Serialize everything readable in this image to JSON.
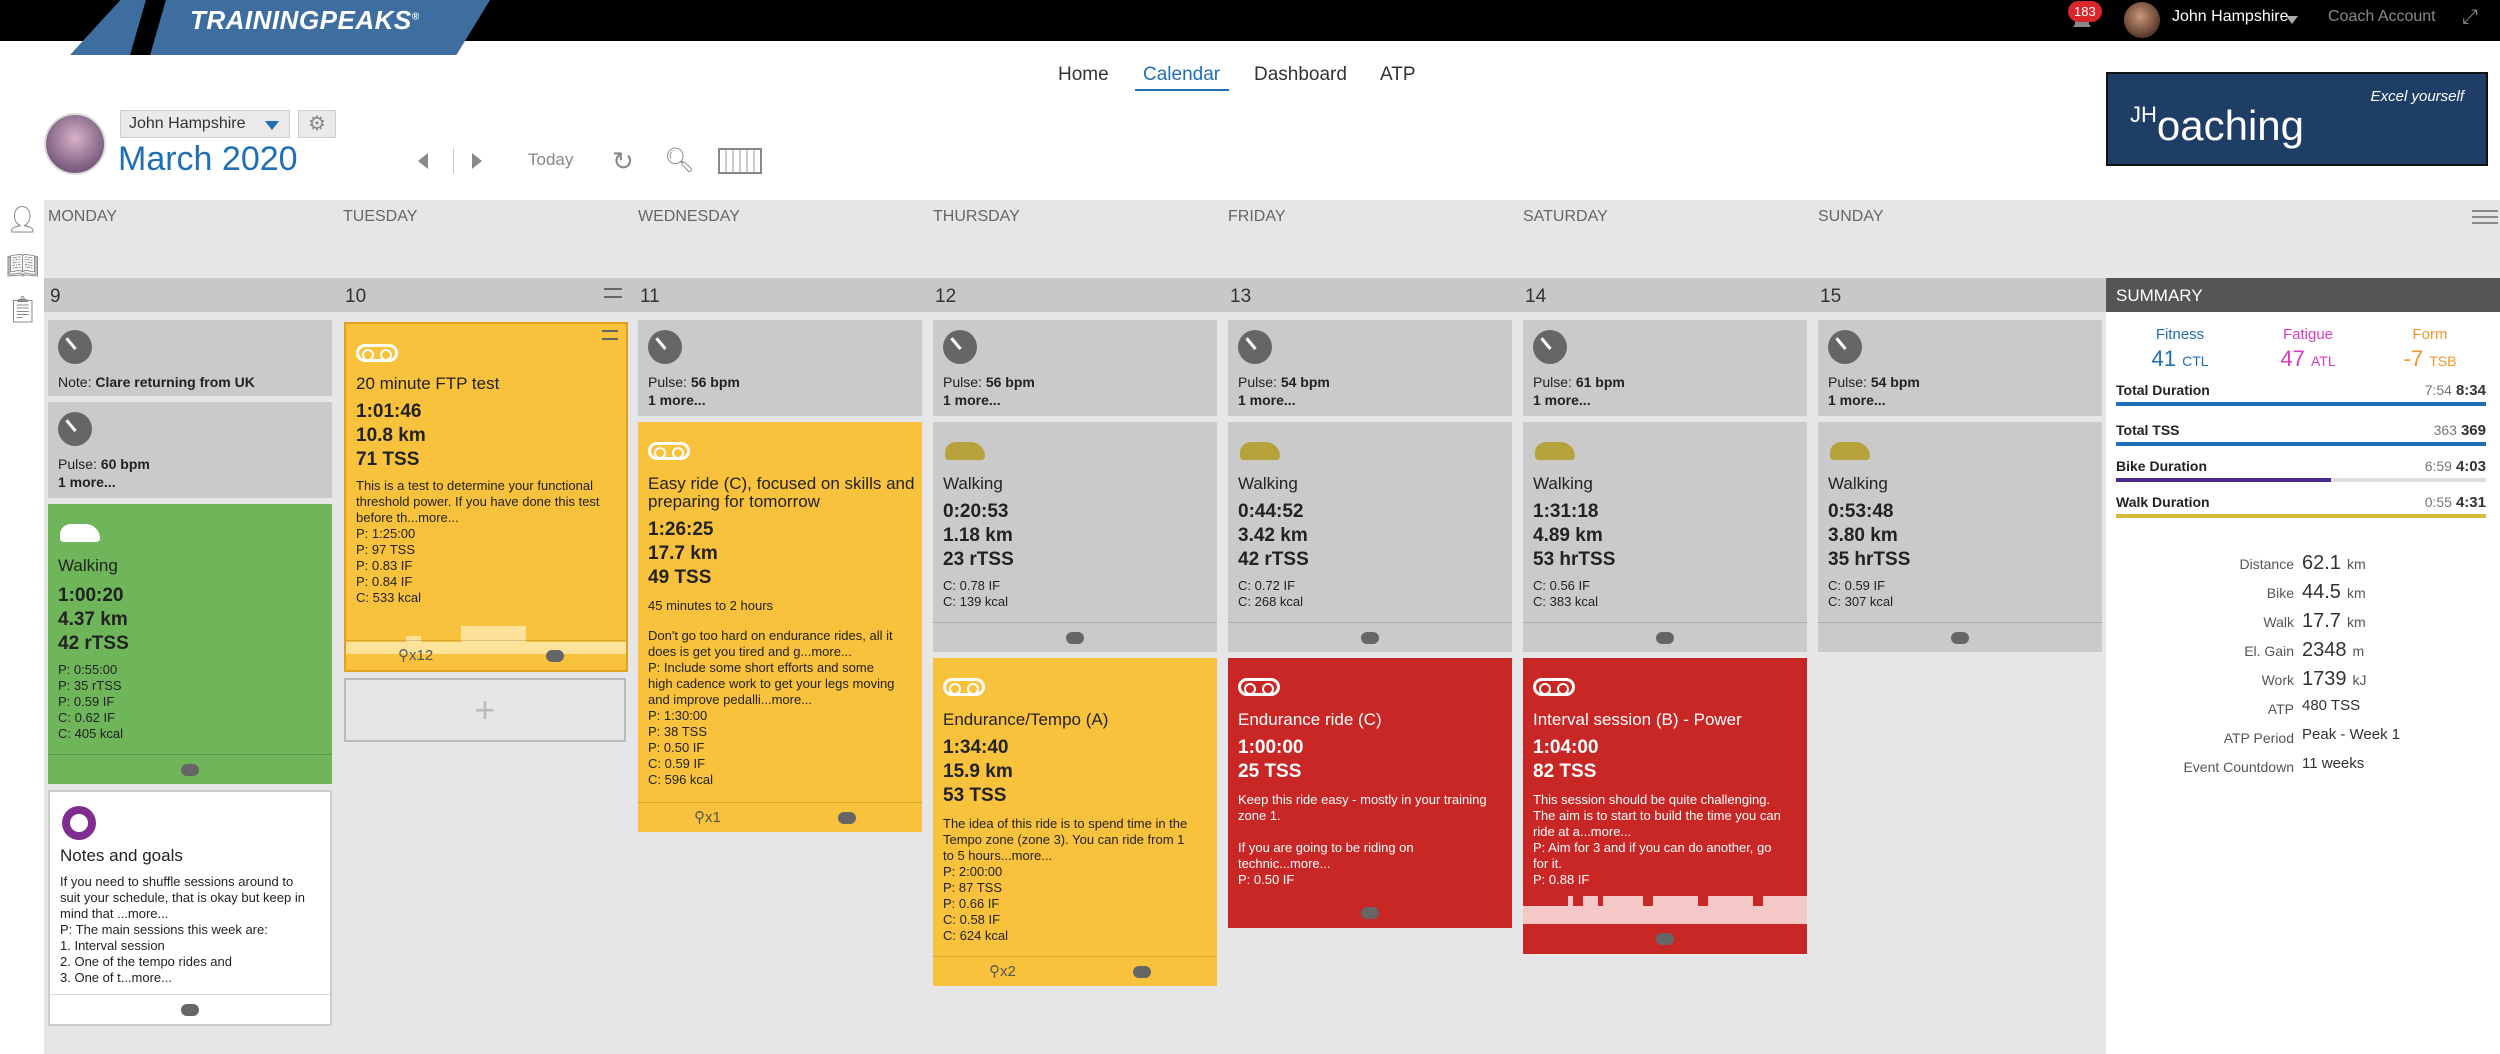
{
  "app": {
    "logo": "TRAININGPEAKS",
    "notifications": "183",
    "user": "John Hampshire",
    "coach_account": "Coach Account"
  },
  "nav": {
    "home": "Home",
    "calendar": "Calendar",
    "dashboard": "Dashboard",
    "atp": "ATP"
  },
  "header": {
    "athlete": "John Hampshire",
    "month": "March",
    "year": "2020",
    "today": "Today"
  },
  "brand": {
    "tagline": "Excel yourself",
    "name": "oaching",
    "initials": "JH"
  },
  "days": [
    "MONDAY",
    "TUESDAY",
    "WEDNESDAY",
    "THURSDAY",
    "FRIDAY",
    "SATURDAY",
    "SUNDAY"
  ],
  "dates": [
    "9",
    "10",
    "11",
    "12",
    "13",
    "14",
    "15"
  ],
  "cards": {
    "mon_note": {
      "label": "Note:",
      "text": "Clare returning from UK"
    },
    "mon_pulse": {
      "label": "Pulse:",
      "value": "60 bpm",
      "more": "1 more..."
    },
    "mon_walk": {
      "title": "Walking",
      "duration": "1:00:20",
      "distance": "4.37 km",
      "tss": "42 rTSS",
      "lines": [
        "P: 0:55:00",
        "P: 35 rTSS",
        "P: 0.59 IF",
        "C: 0.62 IF",
        "C: 405 kcal"
      ]
    },
    "mon_notes": {
      "title": "Notes and goals",
      "lines": [
        "If you need to shuffle sessions around to",
        "suit your schedule, that is okay but keep in",
        "mind that ...more...",
        "P: The main sessions this week are:",
        "1. Interval session",
        "2. One of the tempo rides and",
        "3. One of t...more..."
      ]
    },
    "tue_ftp": {
      "title": "20 minute FTP test",
      "duration": "1:01:46",
      "distance": "10.8 km",
      "tss": "71 TSS",
      "lines": [
        "This is a test to determine your functional",
        "threshold power. If you have done this test",
        "before th...more...",
        "P: 1:25:00",
        "P: 97 TSS",
        "P: 0.83 IF",
        "P: 0.84 IF",
        "C: 533 kcal"
      ],
      "count": "x12"
    },
    "wed_pulse": {
      "label": "Pulse:",
      "value": "56 bpm",
      "more": "1 more..."
    },
    "wed_ride": {
      "title": "Easy ride (C), focused on skills and",
      "title2": "preparing for tomorrow",
      "duration": "1:26:25",
      "distance": "17.7 km",
      "tss": "49 TSS",
      "sub": "45 minutes to 2 hours",
      "lines": [
        "Don't go too hard on endurance rides, all it",
        "does is get you tired and g...more...",
        "P: Include some short efforts and some",
        "high cadence work to get your legs moving",
        "and improve pedalli...more...",
        "P: 1:30:00",
        "P: 38 TSS",
        "P: 0.50 IF",
        "C: 0.59 IF",
        "C: 596 kcal"
      ],
      "count": "x1"
    },
    "thu_pulse": {
      "label": "Pulse:",
      "value": "56 bpm",
      "more": "1 more..."
    },
    "thu_walk": {
      "title": "Walking",
      "duration": "0:20:53",
      "distance": "1.18 km",
      "tss": "23 rTSS",
      "lines": [
        "C: 0.78 IF",
        "C: 139 kcal"
      ]
    },
    "thu_ride": {
      "title": "Endurance/Tempo (A)",
      "duration": "1:34:40",
      "distance": "15.9 km",
      "tss": "53 TSS",
      "lines": [
        "The idea of this ride is to spend time in the",
        "Tempo zone (zone 3). You can ride from 1",
        "to 5 hours...more...",
        "P: 2:00:00",
        "P: 87 TSS",
        "P: 0.66 IF",
        "C: 0.58 IF",
        "C: 624 kcal"
      ],
      "count": "x2"
    },
    "fri_pulse": {
      "label": "Pulse:",
      "value": "54 bpm",
      "more": "1 more..."
    },
    "fri_walk": {
      "title": "Walking",
      "duration": "0:44:52",
      "distance": "3.42 km",
      "tss": "42 rTSS",
      "lines": [
        "C: 0.72 IF",
        "C: 268 kcal"
      ]
    },
    "fri_ride": {
      "title": "Endurance ride (C)",
      "duration": "1:00:00",
      "tss": "25 TSS",
      "lines": [
        "Keep this ride easy - mostly in your training",
        "zone 1.",
        "",
        "If you are going to be riding on",
        "technic...more...",
        "P: 0.50 IF"
      ]
    },
    "sat_pulse": {
      "label": "Pulse:",
      "value": "61 bpm",
      "more": "1 more..."
    },
    "sat_walk": {
      "title": "Walking",
      "duration": "1:31:18",
      "distance": "4.89 km",
      "tss": "53 hrTSS",
      "lines": [
        "C: 0.56 IF",
        "C: 383 kcal"
      ]
    },
    "sat_ride": {
      "title": "Interval session (B) - Power",
      "duration": "1:04:00",
      "tss": "82 TSS",
      "lines": [
        "This session should be quite challenging.",
        "The aim is to start to build the time you can",
        "ride at a...more...",
        "P: Aim for 3 and if you can do another, go",
        "for it.",
        "P: 0.88 IF"
      ]
    },
    "sun_pulse": {
      "label": "Pulse:",
      "value": "54 bpm",
      "more": "1 more..."
    },
    "sun_walk": {
      "title": "Walking",
      "duration": "0:53:48",
      "distance": "3.80 km",
      "tss": "35 hrTSS",
      "lines": [
        "C: 0.59 IF",
        "C: 307 kcal"
      ]
    }
  },
  "summary": {
    "title": "SUMMARY",
    "fitness": {
      "label": "Fitness",
      "value": "41",
      "unit": "CTL"
    },
    "fatigue": {
      "label": "Fatigue",
      "value": "47",
      "unit": "ATL"
    },
    "form": {
      "label": "Form",
      "value": "-7",
      "unit": "TSB"
    },
    "bars": [
      {
        "label": "Total Duration",
        "planned": "7:54",
        "completed": "8:34",
        "color": "#1f6fb5",
        "fill": 1.0
      },
      {
        "label": "Total TSS",
        "planned": "363",
        "completed": "369",
        "color": "#1f6fb5",
        "fill": 1.0
      },
      {
        "label": "Bike Duration",
        "planned": "6:59",
        "completed": "4:03",
        "color": "#4a2a8a",
        "fill": 0.58
      },
      {
        "label": "Walk Duration",
        "planned": "0:55",
        "completed": "4:31",
        "color": "#d4b93a",
        "fill": 1.0
      }
    ],
    "rows": [
      {
        "label": "Distance",
        "value": "62.1",
        "unit": "km"
      },
      {
        "label": "Bike",
        "value": "44.5",
        "unit": "km"
      },
      {
        "label": "Walk",
        "value": "17.7",
        "unit": "km"
      },
      {
        "label": "El. Gain",
        "value": "2348",
        "unit": "m"
      },
      {
        "label": "Work",
        "value": "1739",
        "unit": "kJ"
      },
      {
        "label": "ATP",
        "value": "480 TSS",
        "unit": ""
      },
      {
        "label": "ATP Period",
        "value": "Peak - Week 1",
        "unit": ""
      },
      {
        "label": "Event Countdown",
        "value": "11 weeks",
        "unit": ""
      }
    ]
  }
}
